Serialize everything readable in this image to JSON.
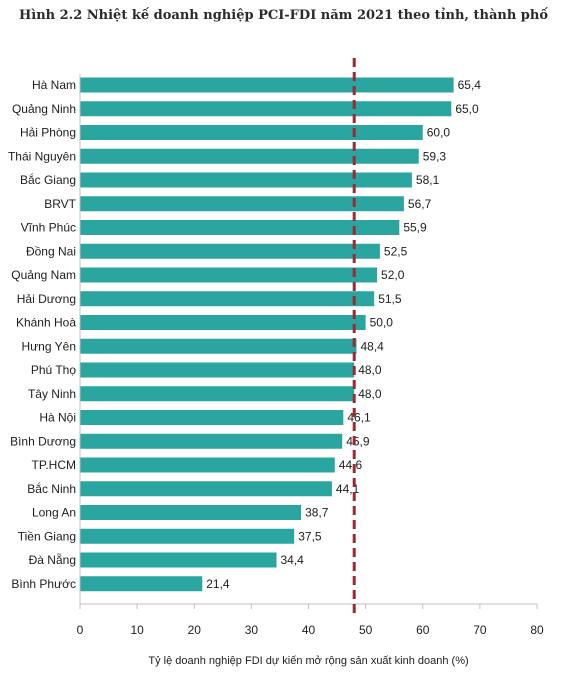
{
  "chart_data": {
    "type": "bar",
    "orientation": "horizontal",
    "title": "Hình 2.2 Nhiệt kế doanh nghiệp PCI-FDI năm 2021 theo tỉnh, thành phố",
    "xlabel": "Tỷ lệ doanh nghiệp FDI dự kiến mở rộng sản xuất kinh doanh (%)",
    "ylabel": "",
    "xlim": [
      0,
      80
    ],
    "xticks": [
      0,
      10,
      20,
      30,
      40,
      50,
      60,
      70,
      80
    ],
    "reference_line": 48,
    "grid": false,
    "bar_color": "#2aa5a0",
    "reference_line_color": "#9b2a33",
    "categories": [
      "Hà Nam",
      "Quảng Ninh",
      "Hải Phòng",
      "Thái Nguyên",
      "Bắc Giang",
      "BRVT",
      "Vĩnh Phúc",
      "Đồng Nai",
      "Quảng Nam",
      "Hải Dương",
      "Khánh Hoà",
      "Hưng Yên",
      "Phú Thọ",
      "Tây Ninh",
      "Hà Nội",
      "Bình Dương",
      "TP.HCM",
      "Bắc Ninh",
      "Long An",
      "Tiền Giang",
      "Đà Nẵng",
      "Bình Phước"
    ],
    "values": [
      65.4,
      65.0,
      60.0,
      59.3,
      58.1,
      56.7,
      55.9,
      52.5,
      52.0,
      51.5,
      50.0,
      48.4,
      48.0,
      48.0,
      46.1,
      45.9,
      44.6,
      44.1,
      38.7,
      37.5,
      34.4,
      21.4
    ],
    "value_labels": [
      "65,4",
      "65,0",
      "60,0",
      "59,3",
      "58,1",
      "56,7",
      "55,9",
      "52,5",
      "52,0",
      "51,5",
      "50,0",
      "48,4",
      "48,0",
      "48,0",
      "46,1",
      "45,9",
      "44,6",
      "44,1",
      "38,7",
      "37,5",
      "34,4",
      "21,4"
    ]
  }
}
